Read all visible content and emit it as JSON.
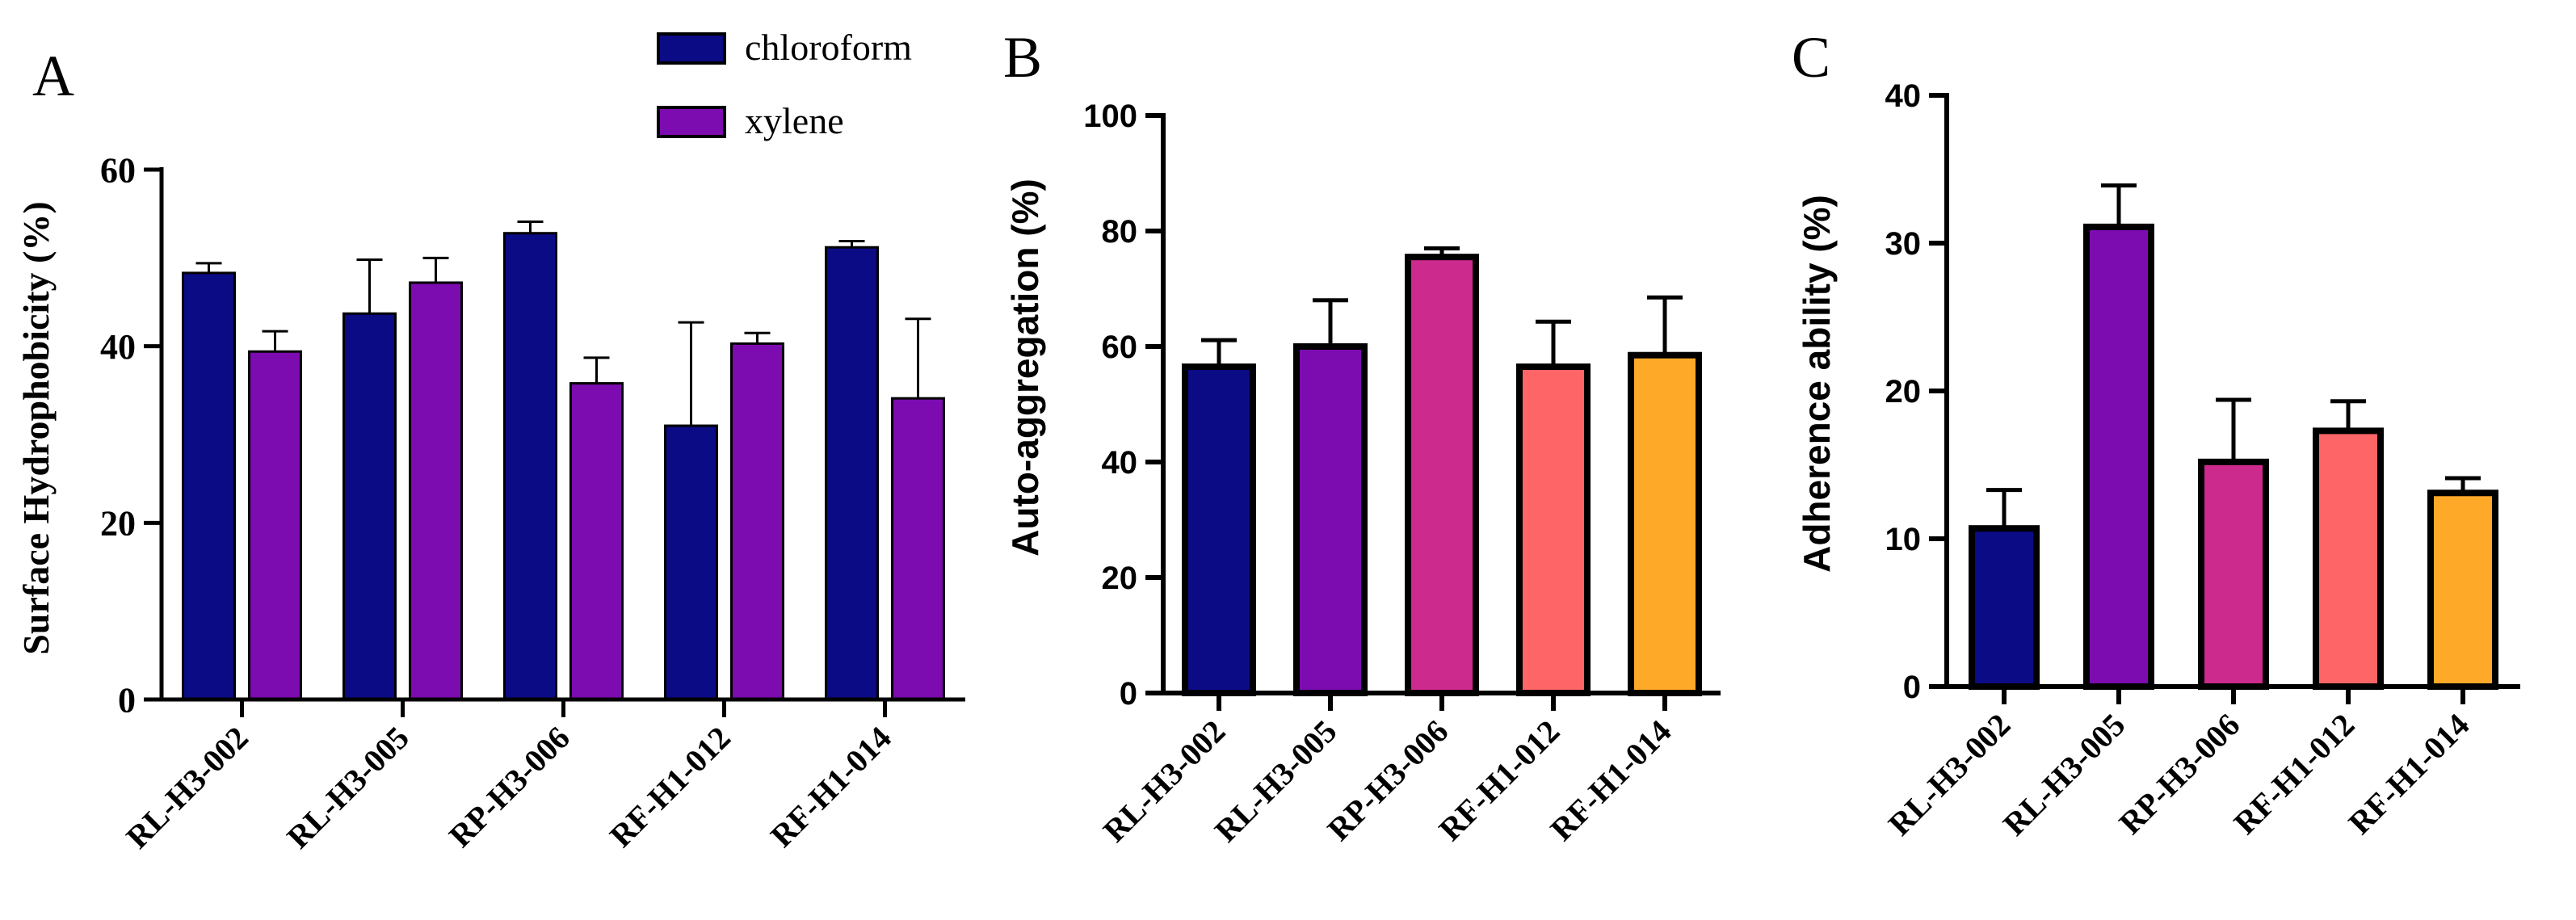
{
  "chart_data": [
    {
      "panel_label": "A",
      "type": "bar",
      "ylabel": "Surface Hydrophobicity (%)",
      "ylim": [
        0,
        60
      ],
      "yticks": [
        0,
        20,
        40,
        60
      ],
      "categories": [
        "RL-H3-002",
        "RL-H3-005",
        "RP-H3-006",
        "RF-H1-012",
        "RF-H1-014"
      ],
      "legend_position": "top",
      "series": [
        {
          "name": "chloroform",
          "color": "#0b0b85",
          "values": [
            48.3,
            43.7,
            52.8,
            31.0,
            51.2
          ],
          "errors": [
            1.1,
            6.1,
            1.3,
            11.7,
            0.7
          ]
        },
        {
          "name": "xylene",
          "color": "#7c0bb0",
          "values": [
            39.4,
            47.2,
            35.8,
            40.3,
            34.1
          ],
          "errors": [
            2.3,
            2.8,
            2.9,
            1.2,
            9.0
          ]
        }
      ]
    },
    {
      "panel_label": "B",
      "type": "bar",
      "ylabel": "Auto-aggregation (%)",
      "ylim": [
        0,
        100
      ],
      "yticks": [
        0,
        20,
        40,
        60,
        80,
        100
      ],
      "categories": [
        "RL-H3-002",
        "RL-H3-005",
        "RP-H3-006",
        "RF-H1-012",
        "RF-H1-014"
      ],
      "values": [
        56.5,
        60.0,
        75.5,
        56.5,
        58.5
      ],
      "errors": [
        4.6,
        8.0,
        1.5,
        7.8,
        10.0
      ],
      "colors": [
        "#0b0b85",
        "#7c0bb0",
        "#cc2a8c",
        "#fd6566",
        "#ffa928"
      ]
    },
    {
      "panel_label": "C",
      "type": "bar",
      "ylabel": "Adherence ability (%)",
      "ylim": [
        0,
        40
      ],
      "yticks": [
        0,
        10,
        20,
        30,
        40
      ],
      "categories": [
        "RL-H3-002",
        "RL-H3-005",
        "RP-H3-006",
        "RF-H1-012",
        "RF-H1-014"
      ],
      "values": [
        10.7,
        31.1,
        15.2,
        17.3,
        13.1
      ],
      "errors": [
        2.6,
        2.8,
        4.2,
        2.0,
        1.0
      ],
      "colors": [
        "#0b0b85",
        "#7c0bb0",
        "#cc2a8c",
        "#fd6566",
        "#ffa928"
      ]
    }
  ]
}
